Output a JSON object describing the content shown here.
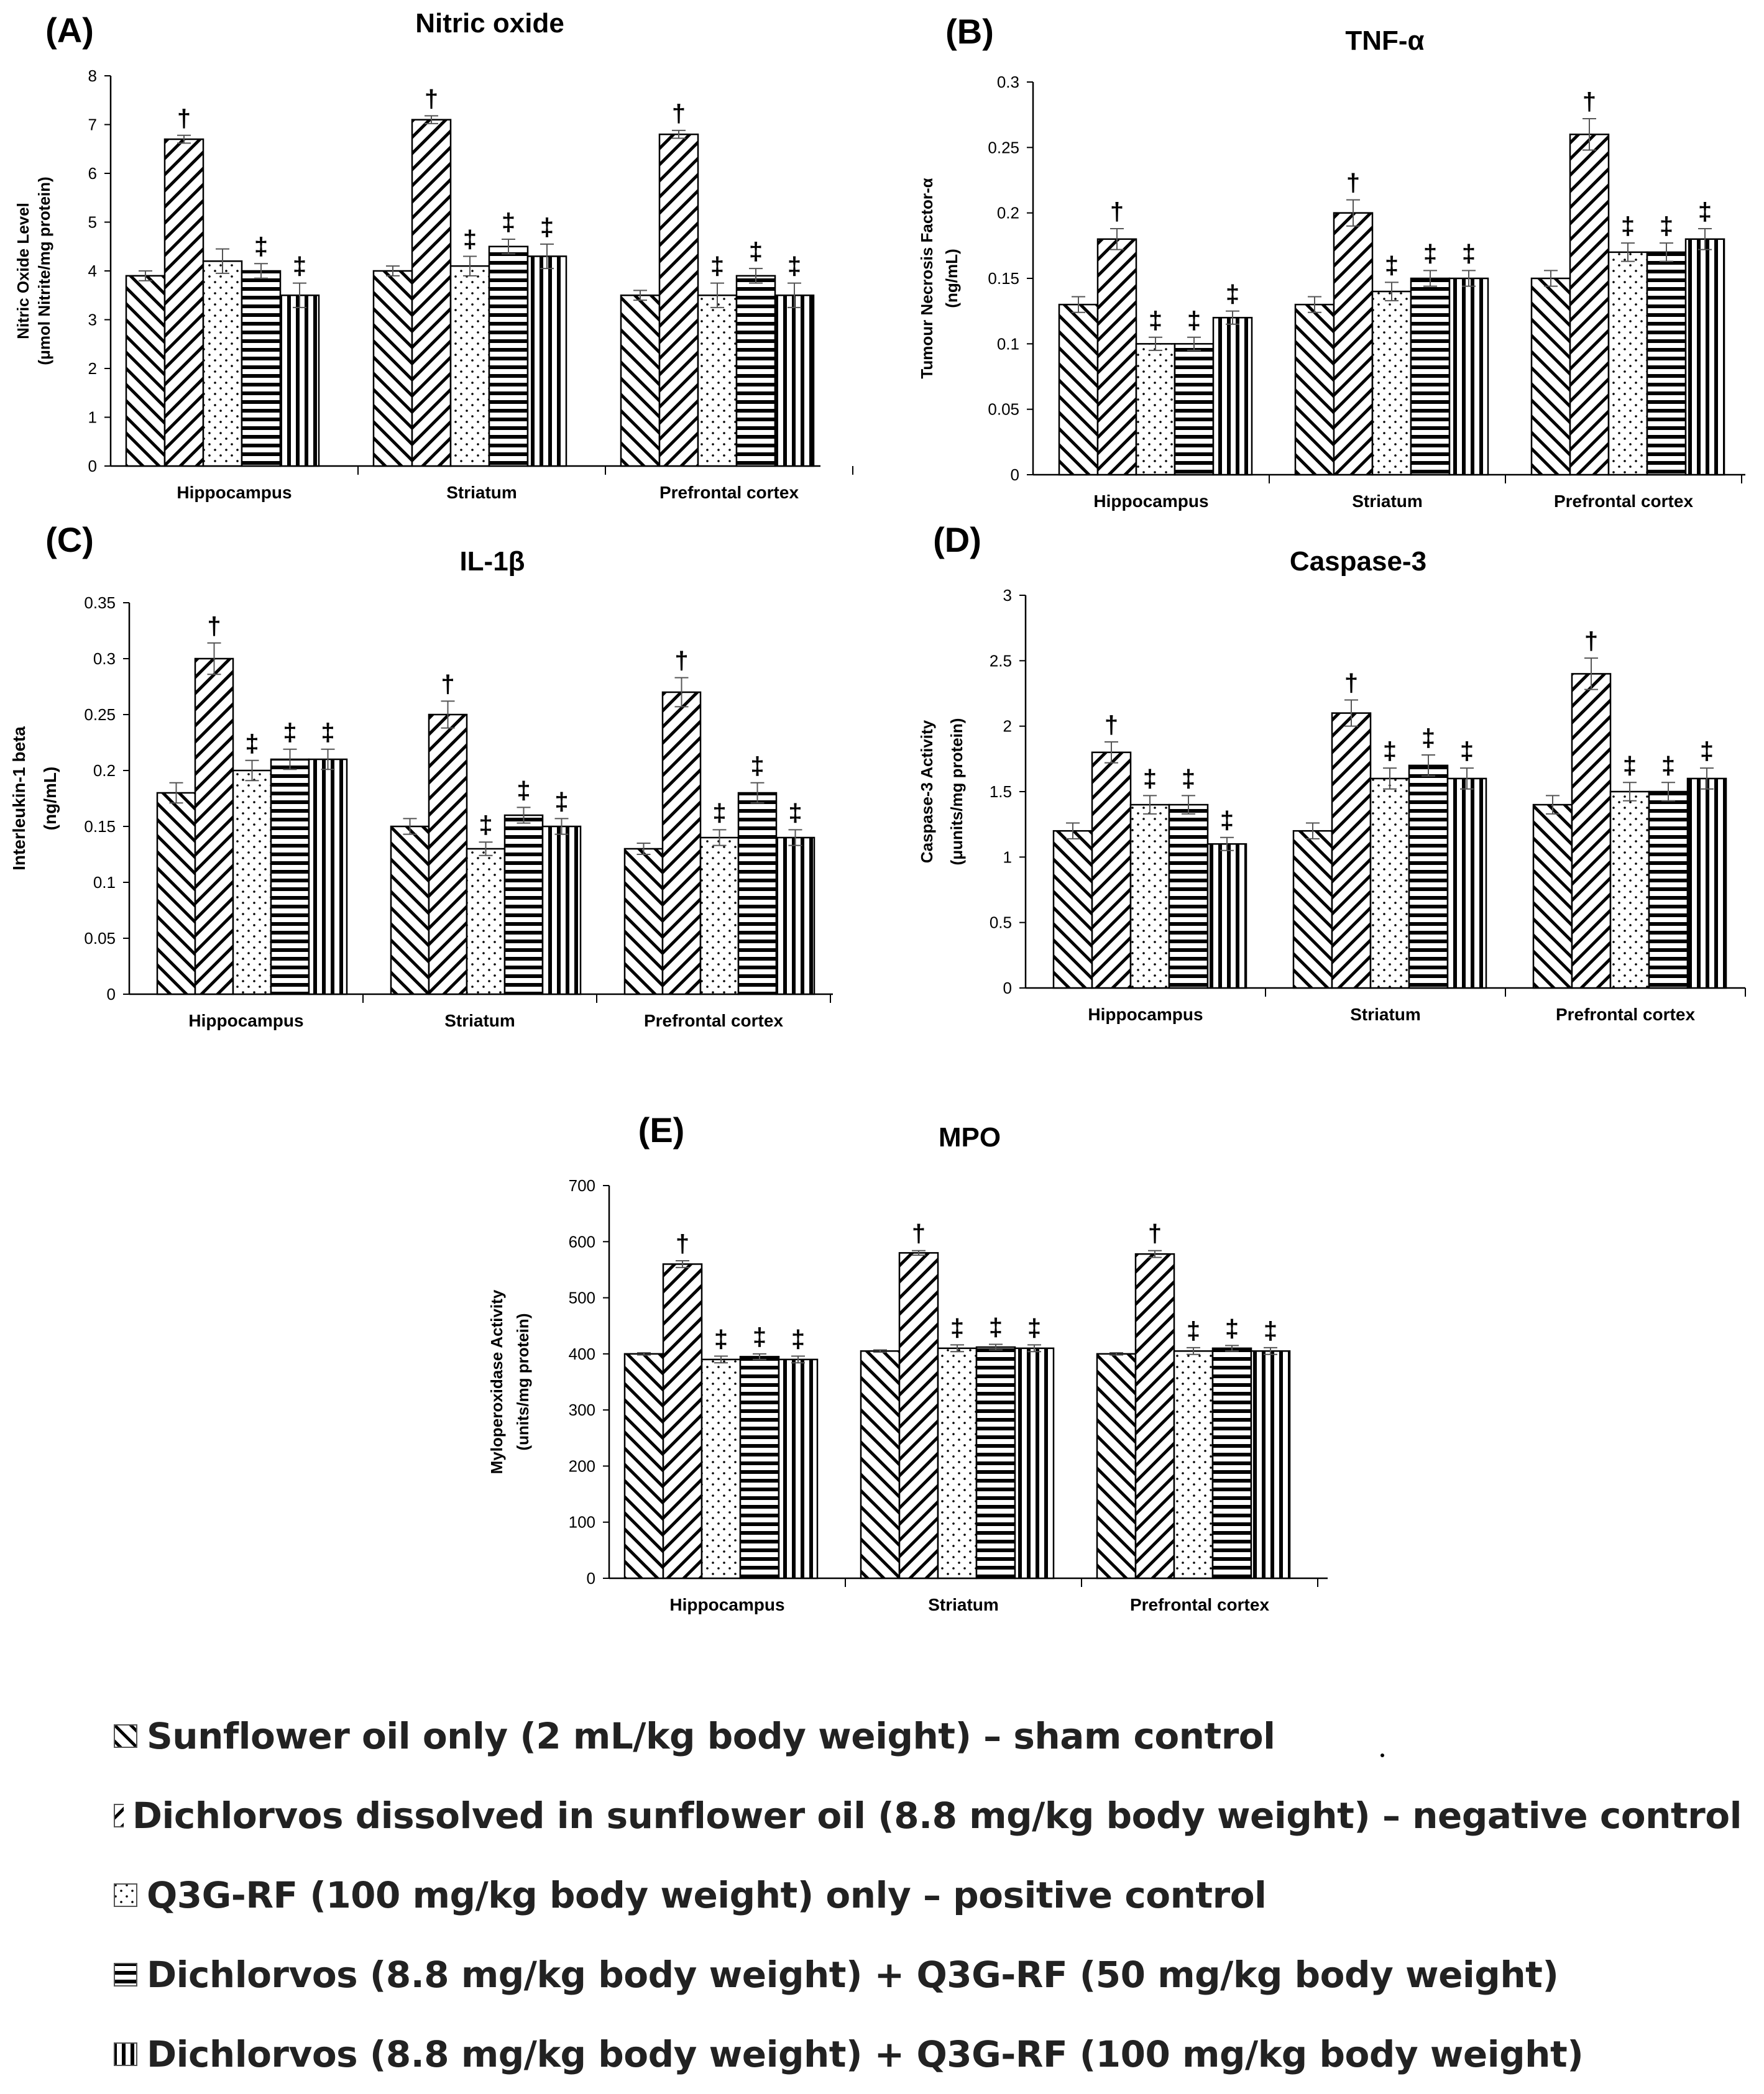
{
  "series_colors": {
    "ink": "#000000",
    "background": "#ffffff"
  },
  "chart_data": [
    {
      "id": "A",
      "type": "bar",
      "panel_label": "(A)",
      "title": "Nitric oxide",
      "ylabel": [
        "Nitric Oxide Level",
        "(μmol Nitrite/mg protein)"
      ],
      "ylim": [
        0,
        8
      ],
      "yticks": [
        0,
        1,
        2,
        3,
        4,
        5,
        6,
        7,
        8
      ],
      "categories": [
        "Hippocampus",
        "Striatum",
        "Prefrontal cortex"
      ],
      "series": [
        {
          "name": "Sunflower oil only (2 mL/kg body weight) – sham control",
          "pattern": "back",
          "values": [
            3.9,
            4.0,
            3.5
          ],
          "errors": [
            0.1,
            0.1,
            0.1
          ],
          "marks": [
            "",
            "",
            ""
          ]
        },
        {
          "name": "Dichlorvos dissolved in sunflower oil (8.8 mg/kg body weight) – negative control",
          "pattern": "fwd",
          "values": [
            6.7,
            7.1,
            6.8
          ],
          "errors": [
            0.08,
            0.08,
            0.08
          ],
          "marks": [
            "†",
            "†",
            "†"
          ]
        },
        {
          "name": "Q3G-RF (100 mg/kg body weight) only – positive control",
          "pattern": "dots",
          "values": [
            4.2,
            4.1,
            3.5
          ],
          "errors": [
            0.25,
            0.2,
            0.25
          ],
          "marks": [
            "",
            "‡",
            "‡"
          ]
        },
        {
          "name": "Dichlorvos (8.8 mg/kg body weight) + Q3G-RF (50 mg/kg body weight)",
          "pattern": "horiz",
          "values": [
            4.0,
            4.5,
            3.9
          ],
          "errors": [
            0.15,
            0.15,
            0.15
          ],
          "marks": [
            "‡",
            "‡",
            "‡"
          ]
        },
        {
          "name": "Dichlorvos (8.8 mg/kg body weight) + Q3G-RF (100 mg/kg body weight)",
          "pattern": "vert",
          "values": [
            3.5,
            4.3,
            3.5
          ],
          "errors": [
            0.25,
            0.25,
            0.25
          ],
          "marks": [
            "‡",
            "‡",
            "‡"
          ]
        }
      ]
    },
    {
      "id": "B",
      "type": "bar",
      "panel_label": "(B)",
      "title": "TNF-α",
      "ylabel": [
        "Tumour Necrosis Factor-α",
        "(ng/mL)"
      ],
      "ylim": [
        0,
        0.3
      ],
      "yticks": [
        0,
        0.05,
        0.1,
        0.15,
        0.2,
        0.25,
        0.3
      ],
      "categories": [
        "Hippocampus",
        "Striatum",
        "Prefrontal cortex"
      ],
      "series": [
        {
          "name": "Sunflower oil only (2 mL/kg body weight) – sham control",
          "pattern": "back",
          "values": [
            0.13,
            0.13,
            0.15
          ],
          "errors": [
            0.006,
            0.006,
            0.006
          ],
          "marks": [
            "",
            "",
            ""
          ]
        },
        {
          "name": "Dichlorvos dissolved in sunflower oil (8.8 mg/kg body weight) – negative control",
          "pattern": "fwd",
          "values": [
            0.18,
            0.2,
            0.26
          ],
          "errors": [
            0.008,
            0.01,
            0.012
          ],
          "marks": [
            "†",
            "†",
            "†"
          ]
        },
        {
          "name": "Q3G-RF (100 mg/kg body weight) only – positive control",
          "pattern": "dots",
          "values": [
            0.1,
            0.14,
            0.17
          ],
          "errors": [
            0.005,
            0.007,
            0.007
          ],
          "marks": [
            "‡",
            "‡",
            "‡"
          ]
        },
        {
          "name": "Dichlorvos (8.8 mg/kg body weight) + Q3G-RF (50 mg/kg body weight)",
          "pattern": "horiz",
          "values": [
            0.1,
            0.15,
            0.17
          ],
          "errors": [
            0.005,
            0.006,
            0.007
          ],
          "marks": [
            "‡",
            "‡",
            "‡"
          ]
        },
        {
          "name": "Dichlorvos (8.8 mg/kg body weight) + Q3G-RF (100 mg/kg body weight)",
          "pattern": "vert",
          "values": [
            0.12,
            0.15,
            0.18
          ],
          "errors": [
            0.005,
            0.006,
            0.008
          ],
          "marks": [
            "‡",
            "‡",
            "‡"
          ]
        }
      ]
    },
    {
      "id": "C",
      "type": "bar",
      "panel_label": "(C)",
      "title": "IL-1β",
      "ylabel": [
        "Interleukin-1 beta",
        "(ng/mL)"
      ],
      "ylim": [
        0,
        0.35
      ],
      "yticks": [
        0,
        0.05,
        0.1,
        0.15,
        0.2,
        0.25,
        0.3,
        0.35
      ],
      "categories": [
        "Hippocampus",
        "Striatum",
        "Prefrontal cortex"
      ],
      "series": [
        {
          "name": "Sunflower oil only (2 mL/kg body weight) – sham control",
          "pattern": "back",
          "values": [
            0.18,
            0.15,
            0.13
          ],
          "errors": [
            0.009,
            0.007,
            0.005
          ],
          "marks": [
            "",
            "",
            ""
          ]
        },
        {
          "name": "Dichlorvos dissolved in sunflower oil (8.8 mg/kg body weight) – negative control",
          "pattern": "fwd",
          "values": [
            0.3,
            0.25,
            0.27
          ],
          "errors": [
            0.014,
            0.012,
            0.013
          ],
          "marks": [
            "†",
            "†",
            "†"
          ]
        },
        {
          "name": "Q3G-RF (100 mg/kg body weight) only – positive control",
          "pattern": "dots",
          "values": [
            0.2,
            0.13,
            0.14
          ],
          "errors": [
            0.009,
            0.006,
            0.007
          ],
          "marks": [
            "‡",
            "‡",
            "‡"
          ]
        },
        {
          "name": "Dichlorvos (8.8 mg/kg body weight) + Q3G-RF (50 mg/kg body weight)",
          "pattern": "horiz",
          "values": [
            0.21,
            0.16,
            0.18
          ],
          "errors": [
            0.009,
            0.007,
            0.009
          ],
          "marks": [
            "‡",
            "‡",
            "‡"
          ]
        },
        {
          "name": "Dichlorvos (8.8 mg/kg body weight) + Q3G-RF (100 mg/kg body weight)",
          "pattern": "vert",
          "values": [
            0.21,
            0.15,
            0.14
          ],
          "errors": [
            0.009,
            0.007,
            0.007
          ],
          "marks": [
            "‡",
            "‡",
            "‡"
          ]
        }
      ]
    },
    {
      "id": "D",
      "type": "bar",
      "panel_label": "(D)",
      "title": "Caspase-3",
      "ylabel": [
        "Caspase-3  Activity",
        "(μunits/mg protein)"
      ],
      "ylim": [
        0,
        3
      ],
      "yticks": [
        0,
        0.5,
        1,
        1.5,
        2,
        2.5,
        3
      ],
      "categories": [
        "Hippocampus",
        "Striatum",
        "Prefrontal cortex"
      ],
      "series": [
        {
          "name": "Sunflower oil only (2 mL/kg body weight) – sham control",
          "pattern": "back",
          "values": [
            1.2,
            1.2,
            1.4
          ],
          "errors": [
            0.06,
            0.06,
            0.07
          ],
          "marks": [
            "",
            "",
            ""
          ]
        },
        {
          "name": "Dichlorvos dissolved in sunflower oil (8.8 mg/kg body weight) – negative control",
          "pattern": "fwd",
          "values": [
            1.8,
            2.1,
            2.4
          ],
          "errors": [
            0.08,
            0.1,
            0.12
          ],
          "marks": [
            "†",
            "†",
            "†"
          ]
        },
        {
          "name": "Q3G-RF (100 mg/kg body weight) only – positive control",
          "pattern": "dots",
          "values": [
            1.4,
            1.6,
            1.5
          ],
          "errors": [
            0.07,
            0.08,
            0.07
          ],
          "marks": [
            "‡",
            "‡",
            "‡"
          ]
        },
        {
          "name": "Dichlorvos (8.8 mg/kg body weight) + Q3G-RF (50 mg/kg body weight)",
          "pattern": "horiz",
          "values": [
            1.4,
            1.7,
            1.5
          ],
          "errors": [
            0.07,
            0.08,
            0.07
          ],
          "marks": [
            "‡",
            "‡",
            "‡"
          ]
        },
        {
          "name": "Dichlorvos (8.8 mg/kg body weight) + Q3G-RF (100 mg/kg body weight)",
          "pattern": "vert",
          "values": [
            1.1,
            1.6,
            1.6
          ],
          "errors": [
            0.05,
            0.08,
            0.08
          ],
          "marks": [
            "‡",
            "‡",
            "‡"
          ]
        }
      ]
    },
    {
      "id": "E",
      "type": "bar",
      "panel_label": "(E)",
      "title": "MPO",
      "ylabel": [
        "Myloperoxidase  Activity",
        "(units/mg protein)"
      ],
      "ylim": [
        0,
        700
      ],
      "yticks": [
        0,
        100,
        200,
        300,
        400,
        500,
        600,
        700
      ],
      "categories": [
        "Hippocampus",
        "Striatum",
        "Prefrontal cortex"
      ],
      "series": [
        {
          "name": "Sunflower oil only (2 mL/kg body weight) – sham control",
          "pattern": "back",
          "values": [
            400,
            405,
            400
          ],
          "errors": [
            2,
            2,
            2
          ],
          "marks": [
            "",
            "",
            ""
          ]
        },
        {
          "name": "Dichlorvos dissolved in sunflower oil (8.8 mg/kg body weight) – negative control",
          "pattern": "fwd",
          "values": [
            560,
            580,
            578
          ],
          "errors": [
            6,
            4,
            6
          ],
          "marks": [
            "†",
            "†",
            "†"
          ]
        },
        {
          "name": "Q3G-RF (100 mg/kg body weight) only – positive control",
          "pattern": "dots",
          "values": [
            390,
            410,
            405
          ],
          "errors": [
            6,
            6,
            6
          ],
          "marks": [
            "‡",
            "‡",
            "‡"
          ]
        },
        {
          "name": "Dichlorvos (8.8 mg/kg body weight) + Q3G-RF (50 mg/kg body weight)",
          "pattern": "horiz",
          "values": [
            395,
            412,
            410
          ],
          "errors": [
            5,
            5,
            5
          ],
          "marks": [
            "‡",
            "‡",
            "‡"
          ]
        },
        {
          "name": "Dichlorvos (8.8 mg/kg body weight) + Q3G-RF (100 mg/kg body weight)",
          "pattern": "vert",
          "values": [
            390,
            410,
            405
          ],
          "errors": [
            6,
            6,
            6
          ],
          "marks": [
            "‡",
            "‡",
            "‡"
          ]
        }
      ]
    }
  ],
  "legend": [
    {
      "pattern": "back",
      "label": "Sunflower oil only (2 mL/kg body weight) – sham control"
    },
    {
      "pattern": "fwd",
      "label": "Dichlorvos dissolved in sunflower oil (8.8 mg/kg body weight) – negative control"
    },
    {
      "pattern": "dots",
      "label": "Q3G-RF (100 mg/kg body weight) only – positive control"
    },
    {
      "pattern": "horiz",
      "label": "Dichlorvos (8.8 mg/kg body weight) + Q3G-RF (50 mg/kg body weight)"
    },
    {
      "pattern": "vert",
      "label": "Dichlorvos (8.8 mg/kg body weight) + Q3G-RF (100 mg/kg body weight)"
    }
  ]
}
